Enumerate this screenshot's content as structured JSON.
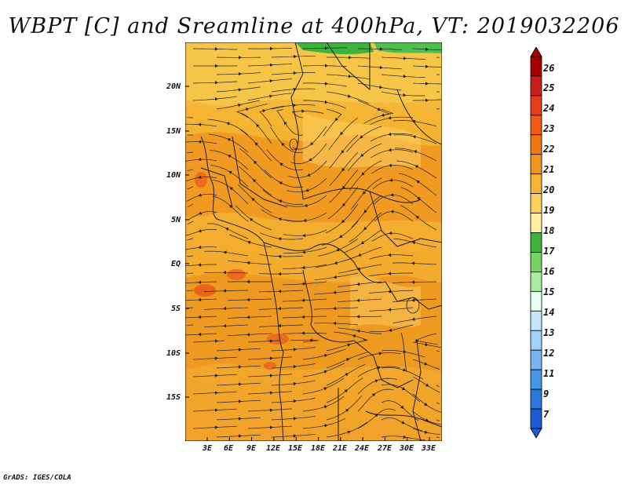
{
  "title": "WBPT [C] and Sreamline at 400hPa, VT: 2019032206",
  "credit": "GrADS: IGES/COLA",
  "map": {
    "latitude_labels": [
      "20N",
      "15N",
      "10N",
      "5N",
      "EQ",
      "5S",
      "10S",
      "15S"
    ],
    "longitude_labels": [
      "3E",
      "6E",
      "9E",
      "12E",
      "15E",
      "18E",
      "21E",
      "24E",
      "27E",
      "30E",
      "33E"
    ]
  },
  "colorbar": {
    "levels": [
      "26",
      "25",
      "24",
      "23",
      "22",
      "21",
      "20",
      "19",
      "18",
      "17",
      "16",
      "15",
      "14",
      "13",
      "12",
      "11",
      "9",
      "7"
    ],
    "colors": [
      "#a50000",
      "#c81e1e",
      "#e63c1e",
      "#f05a14",
      "#f07814",
      "#f0961e",
      "#f5b432",
      "#fad264",
      "#fff0a0",
      "#3cb43c",
      "#78d264",
      "#aaeca0",
      "#e6fff0",
      "#c8e6fa",
      "#a0d2fa",
      "#78b4f0",
      "#4696e6",
      "#2878dc",
      "#1e5ad2"
    ]
  }
}
